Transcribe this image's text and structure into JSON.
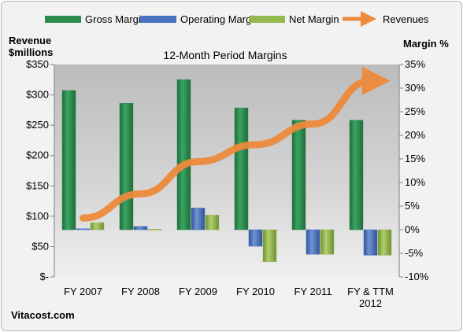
{
  "chart_data": {
    "type": "bar",
    "title": "12-Month Period Margins",
    "y_left_label_line1": "Revenue",
    "y_left_label_line2": "$millions",
    "y_right_label": "Margin %",
    "source": "Vitacost.com",
    "categories": [
      "FY 2007",
      "FY 2008",
      "FY 2009",
      "FY 2010",
      "FY 2011",
      "FY & TTM 2012"
    ],
    "category_lines": [
      [
        "FY 2007"
      ],
      [
        "FY 2008"
      ],
      [
        "FY 2009"
      ],
      [
        "FY 2010"
      ],
      [
        "FY 2011"
      ],
      [
        "FY & TTM",
        "2012"
      ]
    ],
    "y_left_ticks": [
      "$-",
      "$50",
      "$100",
      "$150",
      "$200",
      "$250",
      "$300",
      "$350"
    ],
    "y_left_lim": [
      0,
      350
    ],
    "y_right_ticks": [
      "-10%",
      "-5%",
      "0%",
      "5%",
      "10%",
      "15%",
      "20%",
      "25%",
      "30%",
      "35%"
    ],
    "y_right_lim": [
      -10,
      35
    ],
    "grid": false,
    "legend_position": "top",
    "series": [
      {
        "name": "Gross Margin",
        "type": "bar",
        "axis": "right",
        "color": "#2e8b4f",
        "values": [
          29.5,
          26.8,
          31.8,
          25.8,
          23.2,
          23.2
        ]
      },
      {
        "name": "Operating Margin",
        "type": "bar",
        "axis": "right",
        "color": "#4a72c0",
        "values": [
          0.2,
          0.7,
          4.6,
          -3.5,
          -5.2,
          -5.4
        ]
      },
      {
        "name": "Net Margin",
        "type": "bar",
        "axis": "right",
        "color": "#93b84d",
        "values": [
          1.5,
          0.1,
          3.1,
          -6.8,
          -5.2,
          -5.4
        ]
      },
      {
        "name": "Revenues",
        "type": "line",
        "axis": "left",
        "color": "#ed8a3c",
        "values": [
          97,
          137,
          190,
          218,
          252,
          323
        ]
      }
    ]
  }
}
